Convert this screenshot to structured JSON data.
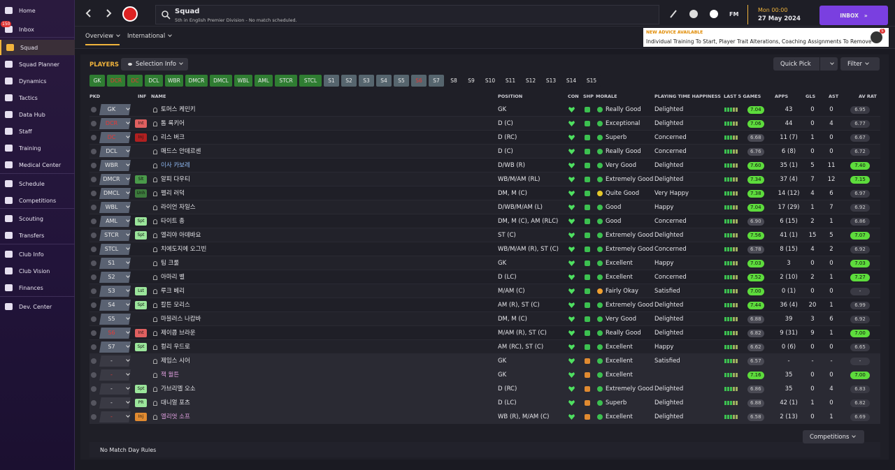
{
  "sidebar": {
    "items": [
      "Home",
      "Inbox",
      "Squad",
      "Squad Planner",
      "Dynamics",
      "Tactics",
      "Data Hub",
      "Staff",
      "Training",
      "Medical Center",
      "Schedule",
      "Competitions",
      "Scouting",
      "Transfers",
      "Club Info",
      "Club Vision",
      "Finances",
      "Dev. Center"
    ],
    "selected": 2,
    "inbox_badge": "150"
  },
  "header": {
    "title": "Squad",
    "subtitle": "5th in English Premier Division - No match scheduled.",
    "fm": "FM",
    "time": "Mon 00:00",
    "date": "27 May 2024",
    "inbox_button": "INBOX"
  },
  "tabs": [
    "Overview",
    "International"
  ],
  "advice": {
    "heading": "NEW ADVICE AVAILABLE",
    "text": "Individual Training To Start, Player Trait Alterations, Coaching Assignments To Remove",
    "count": "5"
  },
  "players": {
    "title": "PLAYERS",
    "selection_info": "Selection Info",
    "quick_pick": "Quick Pick",
    "filter": "Filter",
    "positions": [
      {
        "label": "GK",
        "bg": "#2f7d32",
        "fg": "#e8e8e8"
      },
      {
        "label": "DCR",
        "bg": "#2f7d32",
        "fg": "#e53935"
      },
      {
        "label": "DC",
        "bg": "#2f7d32",
        "fg": "#e53935"
      },
      {
        "label": "DCL",
        "bg": "#2f7d32",
        "fg": "#e8e8e8"
      },
      {
        "label": "WBR",
        "bg": "#2f7d32",
        "fg": "#e8e8e8"
      },
      {
        "label": "DMCR",
        "bg": "#2f7d32",
        "fg": "#e8e8e8"
      },
      {
        "label": "DMCL",
        "bg": "#2f7d32",
        "fg": "#e8e8e8"
      },
      {
        "label": "WBL",
        "bg": "#2f7d32",
        "fg": "#e8e8e8"
      },
      {
        "label": "AML",
        "bg": "#2f7d32",
        "fg": "#e8e8e8"
      },
      {
        "label": "STCR",
        "bg": "#2f7d32",
        "fg": "#e8e8e8"
      },
      {
        "label": "STCL",
        "bg": "#2f7d32",
        "fg": "#e8e8e8"
      },
      {
        "label": "S1",
        "bg": "#56656e",
        "fg": "#e8e8e8"
      },
      {
        "label": "S2",
        "bg": "#56656e",
        "fg": "#e8e8e8"
      },
      {
        "label": "S3",
        "bg": "#56656e",
        "fg": "#e8e8e8"
      },
      {
        "label": "S4",
        "bg": "#56656e",
        "fg": "#e8e8e8"
      },
      {
        "label": "S5",
        "bg": "#56656e",
        "fg": "#e8e8e8"
      },
      {
        "label": "S6",
        "bg": "#56656e",
        "fg": "#e53935"
      },
      {
        "label": "S7",
        "bg": "#56656e",
        "fg": "#e8e8e8"
      },
      {
        "label": "S8",
        "bg": "#1f1f27",
        "fg": "#e8e8e8"
      },
      {
        "label": "S9",
        "bg": "#1f1f27",
        "fg": "#e8e8e8"
      },
      {
        "label": "S10",
        "bg": "#1f1f27",
        "fg": "#e8e8e8"
      },
      {
        "label": "S11",
        "bg": "#1f1f27",
        "fg": "#e8e8e8"
      },
      {
        "label": "S12",
        "bg": "#1f1f27",
        "fg": "#e8e8e8"
      },
      {
        "label": "S13",
        "bg": "#1f1f27",
        "fg": "#e8e8e8"
      },
      {
        "label": "S14",
        "bg": "#1f1f27",
        "fg": "#e8e8e8"
      },
      {
        "label": "S15",
        "bg": "#1f1f27",
        "fg": "#e8e8e8"
      }
    ]
  },
  "table": {
    "columns": [
      "PKD",
      "INF",
      "NAME",
      "POSITION",
      "CON",
      "SHP",
      "MORALE",
      "PLAYING TIME HAPPINESS",
      "LAST 5 GAMES",
      "APPS",
      "GLS",
      "AST",
      "AV RAT"
    ],
    "rows": [
      {
        "pkd": "GK",
        "name": "토머스 케민키",
        "position": "GK",
        "morale": "Really Good",
        "happiness": "Delighted",
        "form": "7.04",
        "apps": "43",
        "gls": "0",
        "ast": "0",
        "avrat": "6.95"
      },
      {
        "pkd": "DCR",
        "pkd_color": "#e53935",
        "inf": "Int",
        "inf_color": "#e06060",
        "name": "톰 록키어",
        "position": "D (C)",
        "morale": "Exceptional",
        "happiness": "Delighted",
        "form": "7.06",
        "apps": "44",
        "gls": "0",
        "ast": "4",
        "avrat": "6.77"
      },
      {
        "pkd": "DC",
        "pkd_color": "#e53935",
        "inf": "Inj",
        "inf_color": "#b02020",
        "name": "리스 버크",
        "position": "D (RC)",
        "morale": "Superb",
        "happiness": "Concerned",
        "form": "6.68",
        "apps": "11 (7)",
        "gls": "1",
        "ast": "0",
        "avrat": "6.67"
      },
      {
        "pkd": "DCL",
        "name": "매드스 안데르센",
        "position": "D (C)",
        "morale": "Really Good",
        "happiness": "Concerned",
        "form": "6.76",
        "apps": "6 (8)",
        "gls": "0",
        "ast": "0",
        "avrat": "6.72"
      },
      {
        "pkd": "WBR",
        "name": "이사 카보레",
        "name_color": "#8fb8f0",
        "position": "D/WB (R)",
        "morale": "Very Good",
        "happiness": "Delighted",
        "form": "7.60",
        "apps": "35 (1)",
        "gls": "5",
        "ast": "11",
        "avrat": "7.40"
      },
      {
        "pkd": "DMCR",
        "inf": "Slt",
        "inf_color": "#4a9a4a",
        "name": "알피 다우티",
        "position": "WB/M/AM (RL)",
        "morale": "Extremely Good",
        "happiness": "Delighted",
        "form": "7.34",
        "apps": "37 (4)",
        "gls": "7",
        "ast": "12",
        "avrat": "7.15"
      },
      {
        "pkd": "DMCL",
        "inf": "Unh",
        "inf_color": "#3c7a3c",
        "name": "펠리 러덕",
        "position": "DM, M (C)",
        "morale": "Quite Good",
        "morale_color": "#e5c82a",
        "happiness": "Very Happy",
        "form": "7.38",
        "apps": "14 (12)",
        "gls": "4",
        "ast": "6",
        "avrat": "6.97"
      },
      {
        "pkd": "WBL",
        "name": "라이언 자일스",
        "position": "D/WB/M/AM (L)",
        "morale": "Good",
        "happiness": "Happy",
        "form": "7.04",
        "apps": "17 (29)",
        "gls": "1",
        "ast": "7",
        "avrat": "6.92"
      },
      {
        "pkd": "AML",
        "inf": "Spt",
        "inf_color": "#9be59b",
        "name": "타이트 총",
        "position": "DM, M (C), AM (RLC)",
        "morale": "Good",
        "happiness": "Concerned",
        "form": "6.90",
        "apps": "6 (15)",
        "gls": "2",
        "ast": "1",
        "avrat": "6.86"
      },
      {
        "pkd": "STCR",
        "inf": "Spt",
        "inf_color": "#9be59b",
        "name": "엘리야 아데바요",
        "position": "ST (C)",
        "morale": "Extremely Good",
        "happiness": "Delighted",
        "form": "7.56",
        "apps": "41 (1)",
        "gls": "15",
        "ast": "5",
        "avrat": "7.07"
      },
      {
        "pkd": "STCL",
        "name": "치에도지에 오그빈",
        "position": "WB/M/AM (R), ST (C)",
        "morale": "Extremely Good",
        "happiness": "Concerned",
        "form": "6.78",
        "apps": "8 (15)",
        "gls": "4",
        "ast": "2",
        "avrat": "6.92"
      },
      {
        "pkd": "S1",
        "name": "팀 크룰",
        "position": "GK",
        "morale": "Excellent",
        "happiness": "Happy",
        "form": "7.03",
        "apps": "3",
        "gls": "0",
        "ast": "0",
        "avrat": "7.03"
      },
      {
        "pkd": "S2",
        "name": "아마리 벨",
        "position": "D (LC)",
        "morale": "Excellent",
        "happiness": "Concerned",
        "form": "7.52",
        "apps": "2 (10)",
        "gls": "2",
        "ast": "1",
        "avrat": "7.27"
      },
      {
        "pkd": "S3",
        "inf": "Lst",
        "inf_color": "#9be59b",
        "name": "루크 베리",
        "position": "M/AM (C)",
        "morale": "Fairly Okay",
        "morale_color": "#f0a030",
        "happiness": "Satisfied",
        "form": "7.00",
        "apps": "0 (1)",
        "gls": "0",
        "ast": "0",
        "avrat": "-"
      },
      {
        "pkd": "S4",
        "inf": "Spt",
        "inf_color": "#9be59b",
        "name": "칼튼 모리스",
        "position": "AM (R), ST (C)",
        "morale": "Extremely Good",
        "happiness": "Delighted",
        "form": "7.44",
        "apps": "36 (4)",
        "gls": "20",
        "ast": "1",
        "avrat": "6.99"
      },
      {
        "pkd": "S5",
        "name": "마블러스 나캄바",
        "position": "DM, M (C)",
        "morale": "Very Good",
        "happiness": "Delighted",
        "form": "6.88",
        "apps": "39",
        "gls": "3",
        "ast": "6",
        "avrat": "6.92"
      },
      {
        "pkd": "S6",
        "pkd_color": "#e53935",
        "inf": "Int",
        "inf_color": "#e06060",
        "name": "제이콥 브라운",
        "position": "M/AM (R), ST (C)",
        "morale": "Really Good",
        "happiness": "Delighted",
        "form": "6.82",
        "apps": "9 (31)",
        "gls": "9",
        "ast": "1",
        "avrat": "7.00"
      },
      {
        "pkd": "S7",
        "inf": "Spt",
        "inf_color": "#9be59b",
        "name": "컬리 우드로",
        "position": "AM (RC), ST (C)",
        "morale": "Excellent",
        "happiness": "Happy",
        "form": "6.62",
        "apps": "0 (6)",
        "gls": "0",
        "ast": "0",
        "avrat": "6.65"
      },
      {
        "pkd": "-",
        "name": "제임스 시어",
        "position": "GK",
        "morale": "Excellent",
        "happiness": "Satisfied",
        "form": "6.57",
        "apps": "-",
        "gls": "-",
        "ast": "-",
        "avrat": "-"
      },
      {
        "pkd": "-",
        "pkd_color": "#e53935",
        "name": "잭 월튼",
        "name_color": "#e0a0e0",
        "position": "GK",
        "morale": "Excellent",
        "form": "7.16",
        "apps": "35",
        "gls": "0",
        "ast": "0",
        "avrat": "7.00"
      },
      {
        "pkd": "-",
        "inf": "Spt",
        "inf_color": "#9be59b",
        "name": "가브리엘 오소",
        "position": "D (RC)",
        "morale": "Extremely Good",
        "happiness": "Delighted",
        "form": "6.86",
        "apps": "35",
        "gls": "0",
        "ast": "4",
        "avrat": "6.83"
      },
      {
        "pkd": "-",
        "inf": "PR",
        "inf_color": "#9be59b",
        "name": "대니얼 포츠",
        "position": "D (LC)",
        "morale": "Superb",
        "happiness": "Delighted",
        "form": "6.88",
        "apps": "42 (1)",
        "gls": "1",
        "ast": "0",
        "avrat": "6.82"
      },
      {
        "pkd": "-",
        "pkd_color": "#e53935",
        "inf": "Inj",
        "inf_color": "#e08a30",
        "name": "엘리엇 소프",
        "name_color": "#e0a0e0",
        "position": "WB (R), M/AM (C)",
        "morale": "Excellent",
        "happiness": "Delighted",
        "form": "6.58",
        "apps": "2 (13)",
        "gls": "0",
        "ast": "1",
        "avrat": "6.69"
      }
    ]
  },
  "footer": {
    "rules": "No Match Day Rules",
    "competitions": "Competitions"
  }
}
